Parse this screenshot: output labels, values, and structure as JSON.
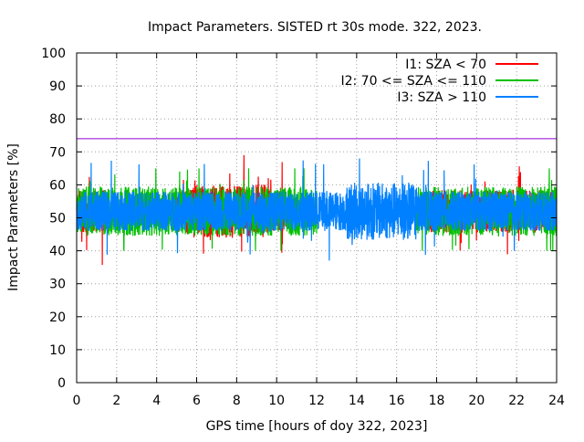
{
  "chart_data": {
    "type": "line",
    "title": "Impact Parameters. SISTED rt 30s mode. 322, 2023.",
    "xlabel": "GPS time [hours of doy 322, 2023]",
    "ylabel": "Impact Parameters [%]",
    "xlim": [
      0,
      24
    ],
    "ylim": [
      0,
      100
    ],
    "xticks": [
      "0",
      "2",
      "4",
      "6",
      "8",
      "10",
      "12",
      "14",
      "16",
      "18",
      "20",
      "22",
      "24"
    ],
    "yticks": [
      "0",
      "10",
      "20",
      "30",
      "40",
      "50",
      "60",
      "70",
      "80",
      "90",
      "100"
    ],
    "grid": true,
    "legend_position": "top-right",
    "reference_line": {
      "y": 74,
      "color": "#9400d3"
    },
    "series": [
      {
        "name": "I1: SZA < 70",
        "color": "#ff0000",
        "mean": 52,
        "typical_range": [
          45,
          58
        ],
        "extreme_range": [
          33,
          69
        ],
        "active_windows": [
          [
            0,
            1.5
          ],
          [
            5,
            10.5
          ],
          [
            17.5,
            24
          ]
        ]
      },
      {
        "name": "I2: 70 <= SZA <= 110",
        "color": "#00c000",
        "mean": 52,
        "typical_range": [
          44,
          59
        ],
        "extreme_range": [
          40,
          65
        ],
        "active_windows": [
          [
            0,
            12
          ],
          [
            17,
            24
          ]
        ]
      },
      {
        "name": "I3: SZA > 110",
        "color": "#0080ff",
        "mean": 52,
        "typical_range": [
          46,
          58
        ],
        "extreme_range": [
          36,
          68
        ],
        "active_windows": [
          [
            0,
            24
          ]
        ]
      }
    ]
  }
}
